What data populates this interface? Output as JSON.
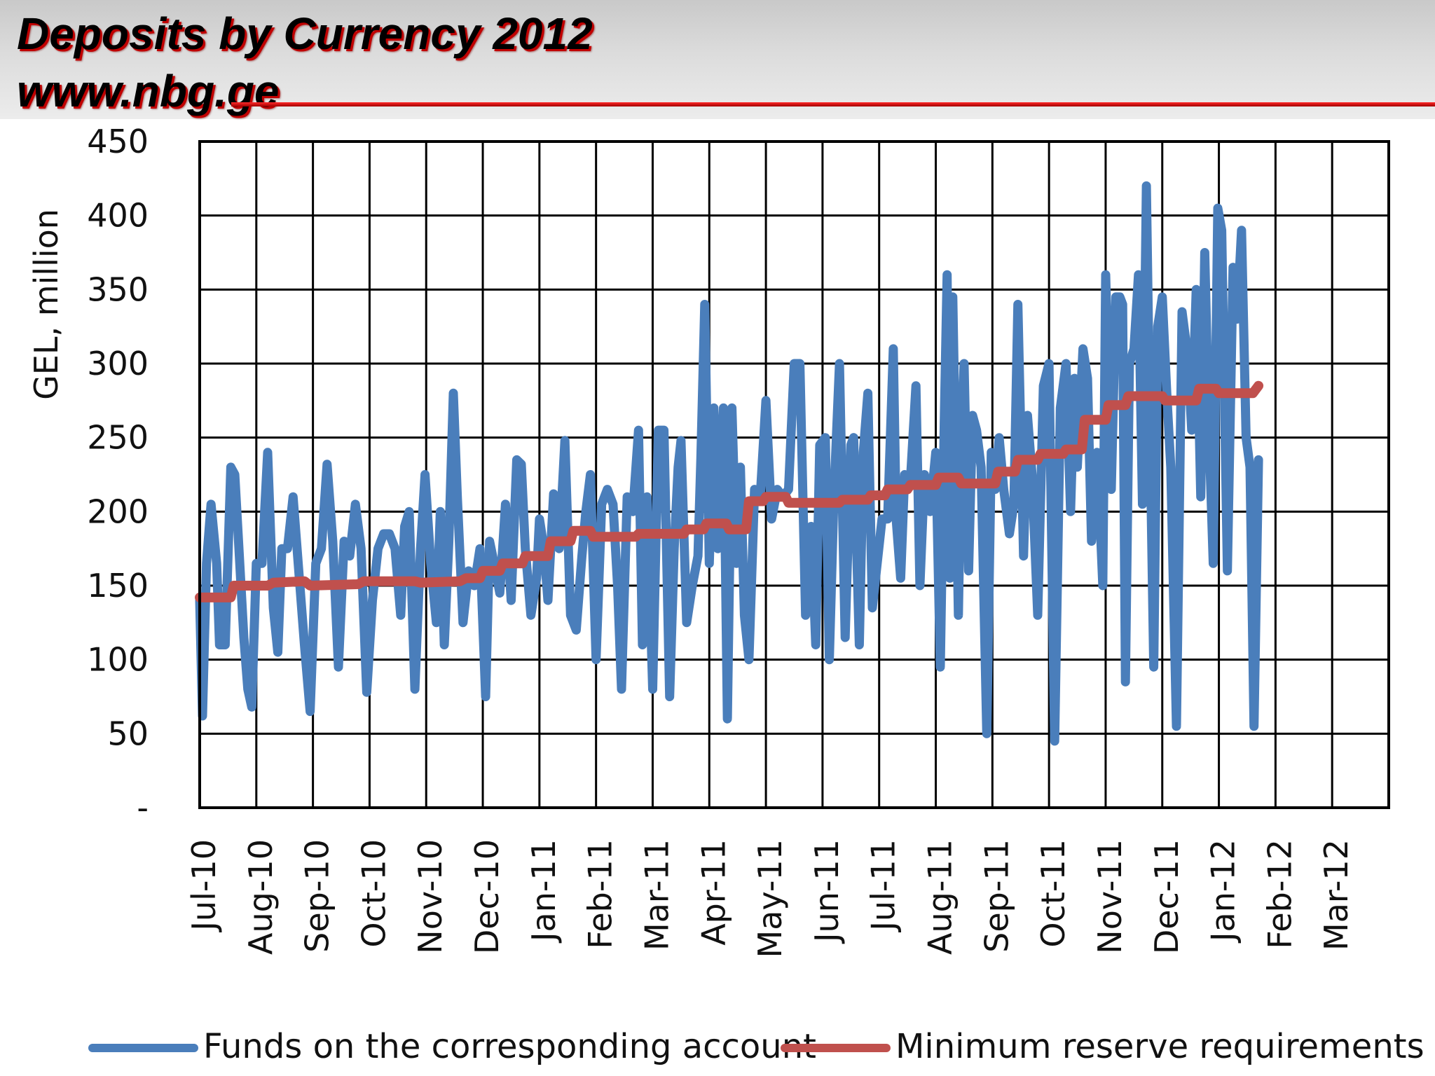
{
  "header": {
    "title": "Deposits by Currency 2012",
    "subtitle": "www.nbg.ge"
  },
  "chart_data": {
    "type": "line",
    "ylabel": "GEL, million",
    "ylim": [
      0,
      450
    ],
    "yticks": [
      0,
      50,
      100,
      150,
      200,
      250,
      300,
      350,
      400,
      450
    ],
    "ytick_labels": [
      "-",
      "50",
      "100",
      "150",
      "200",
      "250",
      "300",
      "350",
      "400",
      "450"
    ],
    "categories": [
      "Jul-10",
      "Aug-10",
      "Sep-10",
      "Oct-10",
      "Nov-10",
      "Dec-10",
      "Jan-11",
      "Feb-11",
      "Mar-11",
      "Apr-11",
      "May-11",
      "Jun-11",
      "Jul-11",
      "Aug-11",
      "Sep-11",
      "Oct-11",
      "Nov-11",
      "Dec-11",
      "Jan-12",
      "Feb-12",
      "Mar-12"
    ],
    "grid": true,
    "legend_position": "bottom",
    "series": [
      {
        "name": "Funds on the corresponding account",
        "color": "#4a7ebb",
        "values": [
          [
            0,
            140
          ],
          [
            0.05,
            62
          ],
          [
            0.12,
            165
          ],
          [
            0.2,
            205
          ],
          [
            0.3,
            165
          ],
          [
            0.35,
            110
          ],
          [
            0.45,
            110
          ],
          [
            0.55,
            230
          ],
          [
            0.62,
            225
          ],
          [
            0.7,
            170
          ],
          [
            0.78,
            115
          ],
          [
            0.85,
            80
          ],
          [
            0.92,
            68
          ],
          [
            1.0,
            165
          ],
          [
            1.1,
            165
          ],
          [
            1.2,
            240
          ],
          [
            1.3,
            135
          ],
          [
            1.38,
            105
          ],
          [
            1.45,
            175
          ],
          [
            1.55,
            175
          ],
          [
            1.65,
            210
          ],
          [
            1.75,
            160
          ],
          [
            1.85,
            110
          ],
          [
            1.95,
            65
          ],
          [
            2.05,
            165
          ],
          [
            2.15,
            175
          ],
          [
            2.25,
            232
          ],
          [
            2.35,
            180
          ],
          [
            2.45,
            95
          ],
          [
            2.55,
            180
          ],
          [
            2.65,
            170
          ],
          [
            2.75,
            205
          ],
          [
            2.85,
            175
          ],
          [
            2.95,
            78
          ],
          [
            3.05,
            140
          ],
          [
            3.15,
            175
          ],
          [
            3.25,
            185
          ],
          [
            3.35,
            185
          ],
          [
            3.45,
            175
          ],
          [
            3.55,
            130
          ],
          [
            3.62,
            190
          ],
          [
            3.7,
            200
          ],
          [
            3.8,
            80
          ],
          [
            3.9,
            175
          ],
          [
            3.98,
            225
          ],
          [
            4.08,
            165
          ],
          [
            4.18,
            125
          ],
          [
            4.25,
            200
          ],
          [
            4.32,
            110
          ],
          [
            4.4,
            180
          ],
          [
            4.48,
            280
          ],
          [
            4.55,
            210
          ],
          [
            4.65,
            125
          ],
          [
            4.75,
            160
          ],
          [
            4.85,
            150
          ],
          [
            4.95,
            175
          ],
          [
            5.05,
            75
          ],
          [
            5.12,
            180
          ],
          [
            5.2,
            165
          ],
          [
            5.3,
            145
          ],
          [
            5.4,
            205
          ],
          [
            5.5,
            140
          ],
          [
            5.6,
            235
          ],
          [
            5.68,
            232
          ],
          [
            5.75,
            175
          ],
          [
            5.85,
            130
          ],
          [
            5.95,
            155
          ],
          [
            6.0,
            195
          ],
          [
            6.08,
            175
          ],
          [
            6.15,
            140
          ],
          [
            6.25,
            212
          ],
          [
            6.35,
            175
          ],
          [
            6.45,
            248
          ],
          [
            6.55,
            130
          ],
          [
            6.65,
            120
          ],
          [
            6.75,
            170
          ],
          [
            6.82,
            200
          ],
          [
            6.9,
            225
          ],
          [
            7.0,
            100
          ],
          [
            7.1,
            205
          ],
          [
            7.2,
            215
          ],
          [
            7.3,
            205
          ],
          [
            7.38,
            150
          ],
          [
            7.45,
            80
          ],
          [
            7.55,
            210
          ],
          [
            7.65,
            200
          ],
          [
            7.75,
            255
          ],
          [
            7.82,
            110
          ],
          [
            7.9,
            210
          ],
          [
            8.0,
            80
          ],
          [
            8.1,
            255
          ],
          [
            8.2,
            255
          ],
          [
            8.3,
            75
          ],
          [
            8.38,
            175
          ],
          [
            8.45,
            230
          ],
          [
            8.5,
            248
          ],
          [
            8.6,
            125
          ],
          [
            8.7,
            150
          ],
          [
            8.8,
            170
          ],
          [
            8.85,
            235
          ],
          [
            8.92,
            340
          ],
          [
            9.0,
            165
          ],
          [
            9.08,
            270
          ],
          [
            9.15,
            175
          ],
          [
            9.25,
            270
          ],
          [
            9.32,
            60
          ],
          [
            9.4,
            270
          ],
          [
            9.48,
            165
          ],
          [
            9.55,
            230
          ],
          [
            9.62,
            130
          ],
          [
            9.7,
            100
          ],
          [
            9.8,
            215
          ],
          [
            9.9,
            210
          ],
          [
            10.0,
            275
          ],
          [
            10.1,
            195
          ],
          [
            10.2,
            215
          ],
          [
            10.3,
            210
          ],
          [
            10.4,
            215
          ],
          [
            10.5,
            300
          ],
          [
            10.6,
            300
          ],
          [
            10.7,
            130
          ],
          [
            10.8,
            190
          ],
          [
            10.88,
            110
          ],
          [
            10.95,
            245
          ],
          [
            11.05,
            250
          ],
          [
            11.12,
            100
          ],
          [
            11.2,
            210
          ],
          [
            11.3,
            300
          ],
          [
            11.4,
            115
          ],
          [
            11.5,
            245
          ],
          [
            11.55,
            250
          ],
          [
            11.65,
            110
          ],
          [
            11.72,
            240
          ],
          [
            11.8,
            280
          ],
          [
            11.88,
            135
          ],
          [
            11.95,
            160
          ],
          [
            12.05,
            195
          ],
          [
            12.15,
            195
          ],
          [
            12.25,
            310
          ],
          [
            12.3,
            195
          ],
          [
            12.38,
            155
          ],
          [
            12.45,
            225
          ],
          [
            12.55,
            220
          ],
          [
            12.65,
            285
          ],
          [
            12.72,
            150
          ],
          [
            12.8,
            225
          ],
          [
            12.9,
            200
          ],
          [
            13.0,
            240
          ],
          [
            13.08,
            95
          ],
          [
            13.15,
            260
          ],
          [
            13.2,
            360
          ],
          [
            13.25,
            155
          ],
          [
            13.3,
            345
          ],
          [
            13.4,
            130
          ],
          [
            13.45,
            245
          ],
          [
            13.5,
            300
          ],
          [
            13.58,
            160
          ],
          [
            13.65,
            265
          ],
          [
            13.72,
            255
          ],
          [
            13.8,
            230
          ],
          [
            13.9,
            50
          ],
          [
            13.98,
            240
          ],
          [
            14.05,
            215
          ],
          [
            14.12,
            250
          ],
          [
            14.2,
            215
          ],
          [
            14.3,
            185
          ],
          [
            14.38,
            205
          ],
          [
            14.45,
            340
          ],
          [
            14.55,
            170
          ],
          [
            14.62,
            265
          ],
          [
            14.7,
            225
          ],
          [
            14.8,
            130
          ],
          [
            14.9,
            285
          ],
          [
            15.0,
            300
          ],
          [
            15.1,
            45
          ],
          [
            15.2,
            270
          ],
          [
            15.3,
            300
          ],
          [
            15.38,
            200
          ],
          [
            15.45,
            290
          ],
          [
            15.5,
            230
          ],
          [
            15.6,
            310
          ],
          [
            15.68,
            290
          ],
          [
            15.75,
            180
          ],
          [
            15.85,
            240
          ],
          [
            15.95,
            150
          ],
          [
            16.0,
            360
          ],
          [
            16.1,
            215
          ],
          [
            16.18,
            345
          ],
          [
            16.25,
            345
          ],
          [
            16.3,
            340
          ],
          [
            16.35,
            85
          ],
          [
            16.42,
            300
          ],
          [
            16.5,
            310
          ],
          [
            16.58,
            360
          ],
          [
            16.65,
            205
          ],
          [
            16.72,
            420
          ],
          [
            16.78,
            260
          ],
          [
            16.85,
            95
          ],
          [
            16.92,
            325
          ],
          [
            17.0,
            345
          ],
          [
            17.08,
            280
          ],
          [
            17.15,
            230
          ],
          [
            17.25,
            55
          ],
          [
            17.35,
            335
          ],
          [
            17.45,
            305
          ],
          [
            17.52,
            255
          ],
          [
            17.6,
            350
          ],
          [
            17.68,
            210
          ],
          [
            17.75,
            375
          ],
          [
            17.82,
            260
          ],
          [
            17.9,
            165
          ],
          [
            17.98,
            405
          ],
          [
            18.05,
            390
          ],
          [
            18.15,
            160
          ],
          [
            18.25,
            365
          ],
          [
            18.32,
            330
          ],
          [
            18.4,
            390
          ],
          [
            18.48,
            250
          ],
          [
            18.55,
            230
          ],
          [
            18.62,
            55
          ],
          [
            18.7,
            235
          ]
        ]
      },
      {
        "name": "Minimum reserve requirements",
        "color": "#c0504d",
        "values": [
          [
            0,
            142
          ],
          [
            0.55,
            142
          ],
          [
            0.6,
            150
          ],
          [
            1.2,
            150
          ],
          [
            1.3,
            152
          ],
          [
            1.85,
            153
          ],
          [
            1.95,
            150
          ],
          [
            2.8,
            151
          ],
          [
            2.9,
            153
          ],
          [
            3.8,
            153
          ],
          [
            3.9,
            152
          ],
          [
            4.6,
            153
          ],
          [
            4.7,
            155
          ],
          [
            4.95,
            155
          ],
          [
            5.0,
            160
          ],
          [
            5.3,
            160
          ],
          [
            5.35,
            165
          ],
          [
            5.7,
            165
          ],
          [
            5.75,
            170
          ],
          [
            6.15,
            170
          ],
          [
            6.2,
            180
          ],
          [
            6.55,
            180
          ],
          [
            6.6,
            187
          ],
          [
            6.9,
            187
          ],
          [
            6.95,
            183
          ],
          [
            7.7,
            183
          ],
          [
            7.75,
            185
          ],
          [
            8.55,
            185
          ],
          [
            8.6,
            188
          ],
          [
            8.9,
            188
          ],
          [
            8.95,
            192
          ],
          [
            9.3,
            192
          ],
          [
            9.35,
            188
          ],
          [
            9.65,
            188
          ],
          [
            9.7,
            207
          ],
          [
            9.95,
            207
          ],
          [
            10.0,
            210
          ],
          [
            10.35,
            210
          ],
          [
            10.4,
            206
          ],
          [
            11.3,
            206
          ],
          [
            11.35,
            208
          ],
          [
            11.8,
            208
          ],
          [
            11.85,
            211
          ],
          [
            12.1,
            211
          ],
          [
            12.15,
            215
          ],
          [
            12.5,
            215
          ],
          [
            12.55,
            218
          ],
          [
            13.0,
            218
          ],
          [
            13.05,
            223
          ],
          [
            13.4,
            223
          ],
          [
            13.45,
            219
          ],
          [
            14.05,
            219
          ],
          [
            14.1,
            227
          ],
          [
            14.4,
            227
          ],
          [
            14.45,
            235
          ],
          [
            14.8,
            235
          ],
          [
            14.85,
            239
          ],
          [
            15.25,
            239
          ],
          [
            15.3,
            242
          ],
          [
            15.58,
            242
          ],
          [
            15.63,
            262
          ],
          [
            16.0,
            262
          ],
          [
            16.05,
            272
          ],
          [
            16.35,
            272
          ],
          [
            16.4,
            278
          ],
          [
            17.0,
            278
          ],
          [
            17.05,
            275
          ],
          [
            17.6,
            275
          ],
          [
            17.65,
            283
          ],
          [
            17.95,
            283
          ],
          [
            18.0,
            280
          ],
          [
            18.6,
            280
          ],
          [
            18.7,
            285
          ]
        ]
      }
    ]
  }
}
